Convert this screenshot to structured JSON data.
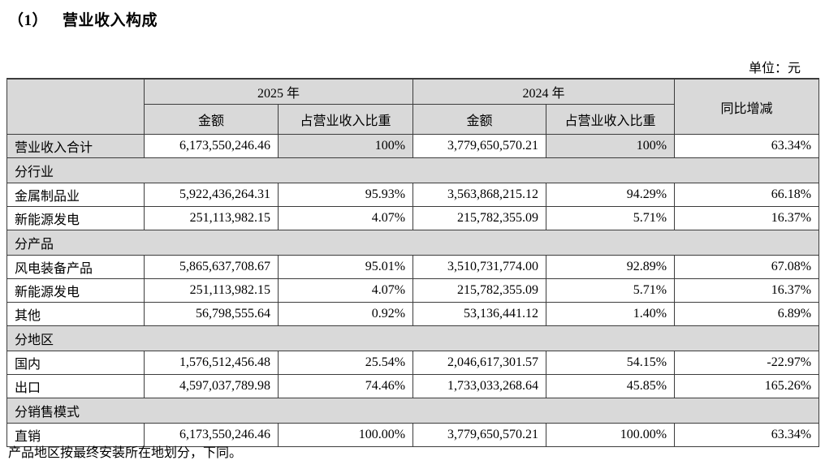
{
  "page": {
    "title_number": "（1）",
    "title_text": "营业收入构成",
    "unit_label": "单位：元",
    "footnote": "产品地区按最终安装所在地划分，下同。",
    "colors": {
      "cell_shading": "#d9d9d9",
      "border": "#3c3c3c",
      "background": "#ffffff",
      "text": "#000000"
    }
  },
  "table": {
    "header": {
      "year_2025": "2025 年",
      "year_2024": "2024 年",
      "amount": "金额",
      "proportion": "占营业收入比重",
      "yoy": "同比增减"
    },
    "rows": [
      {
        "type": "data",
        "label": "营业收入合计",
        "amount_2025": "6,173,550,246.46",
        "pct_2025": "100%",
        "amount_2024": "3,779,650,570.21",
        "pct_2024": "100%",
        "yoy": "63.34%",
        "pct_shaded": true
      },
      {
        "type": "section",
        "label": "分行业"
      },
      {
        "type": "data",
        "label": "金属制品业",
        "amount_2025": "5,922,436,264.31",
        "pct_2025": "95.93%",
        "amount_2024": "3,563,868,215.12",
        "pct_2024": "94.29%",
        "yoy": "66.18%"
      },
      {
        "type": "data",
        "label": "新能源发电",
        "amount_2025": "251,113,982.15",
        "pct_2025": "4.07%",
        "amount_2024": "215,782,355.09",
        "pct_2024": "5.71%",
        "yoy": "16.37%"
      },
      {
        "type": "section",
        "label": "分产品"
      },
      {
        "type": "data",
        "label": "风电装备产品",
        "amount_2025": "5,865,637,708.67",
        "pct_2025": "95.01%",
        "amount_2024": "3,510,731,774.00",
        "pct_2024": "92.89%",
        "yoy": "67.08%"
      },
      {
        "type": "data",
        "label": "新能源发电",
        "amount_2025": "251,113,982.15",
        "pct_2025": "4.07%",
        "amount_2024": "215,782,355.09",
        "pct_2024": "5.71%",
        "yoy": "16.37%"
      },
      {
        "type": "data",
        "label": "其他",
        "amount_2025": "56,798,555.64",
        "pct_2025": "0.92%",
        "amount_2024": "53,136,441.12",
        "pct_2024": "1.40%",
        "yoy": "6.89%"
      },
      {
        "type": "section",
        "label": "分地区"
      },
      {
        "type": "data",
        "label": "国内",
        "amount_2025": "1,576,512,456.48",
        "pct_2025": "25.54%",
        "amount_2024": "2,046,617,301.57",
        "pct_2024": "54.15%",
        "yoy": "-22.97%"
      },
      {
        "type": "data",
        "label": "出口",
        "amount_2025": "4,597,037,789.98",
        "pct_2025": "74.46%",
        "amount_2024": "1,733,033,268.64",
        "pct_2024": "45.85%",
        "yoy": "165.26%"
      },
      {
        "type": "section",
        "label": "分销售模式"
      },
      {
        "type": "data",
        "label": "直销",
        "amount_2025": "6,173,550,246.46",
        "pct_2025": "100.00%",
        "amount_2024": "3,779,650,570.21",
        "pct_2024": "100.00%",
        "yoy": "63.34%"
      }
    ]
  }
}
